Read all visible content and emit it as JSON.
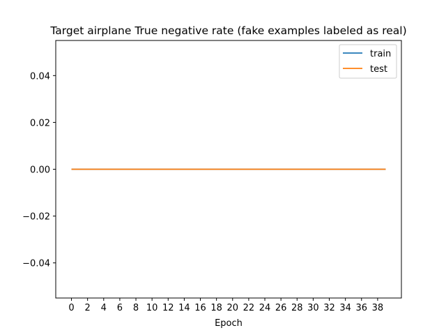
{
  "chart_data": {
    "type": "line",
    "title": "Target airplane True negative rate (fake examples labeled as real)",
    "xlabel": "Epoch",
    "ylabel": "",
    "xlim": [
      -1.95,
      40.95
    ],
    "ylim": [
      -0.055,
      0.055
    ],
    "x_ticks": [
      0,
      2,
      4,
      6,
      8,
      10,
      12,
      14,
      16,
      18,
      20,
      22,
      24,
      26,
      28,
      30,
      32,
      34,
      36,
      38
    ],
    "y_ticks": [
      -0.04,
      -0.02,
      0.0,
      0.02,
      0.04
    ],
    "y_tick_labels": [
      "−0.04",
      "−0.02",
      "0.00",
      "0.02",
      "0.04"
    ],
    "grid": false,
    "legend_position": "top-right",
    "series": [
      {
        "name": "train",
        "color": "#1f77b4",
        "x": [
          0,
          1,
          2,
          3,
          4,
          5,
          6,
          7,
          8,
          9,
          10,
          11,
          12,
          13,
          14,
          15,
          16,
          17,
          18,
          19,
          20,
          21,
          22,
          23,
          24,
          25,
          26,
          27,
          28,
          29,
          30,
          31,
          32,
          33,
          34,
          35,
          36,
          37,
          38,
          39
        ],
        "values": [
          0,
          0,
          0,
          0,
          0,
          0,
          0,
          0,
          0,
          0,
          0,
          0,
          0,
          0,
          0,
          0,
          0,
          0,
          0,
          0,
          0,
          0,
          0,
          0,
          0,
          0,
          0,
          0,
          0,
          0,
          0,
          0,
          0,
          0,
          0,
          0,
          0,
          0,
          0,
          0
        ]
      },
      {
        "name": "test",
        "color": "#ff7f0e",
        "x": [
          0,
          1,
          2,
          3,
          4,
          5,
          6,
          7,
          8,
          9,
          10,
          11,
          12,
          13,
          14,
          15,
          16,
          17,
          18,
          19,
          20,
          21,
          22,
          23,
          24,
          25,
          26,
          27,
          28,
          29,
          30,
          31,
          32,
          33,
          34,
          35,
          36,
          37,
          38,
          39
        ],
        "values": [
          0,
          0,
          0,
          0,
          0,
          0,
          0,
          0,
          0,
          0,
          0,
          0,
          0,
          0,
          0,
          0,
          0,
          0,
          0,
          0,
          0,
          0,
          0,
          0,
          0,
          0,
          0,
          0,
          0,
          0,
          0,
          0,
          0,
          0,
          0,
          0,
          0,
          0,
          0,
          0
        ]
      }
    ]
  }
}
